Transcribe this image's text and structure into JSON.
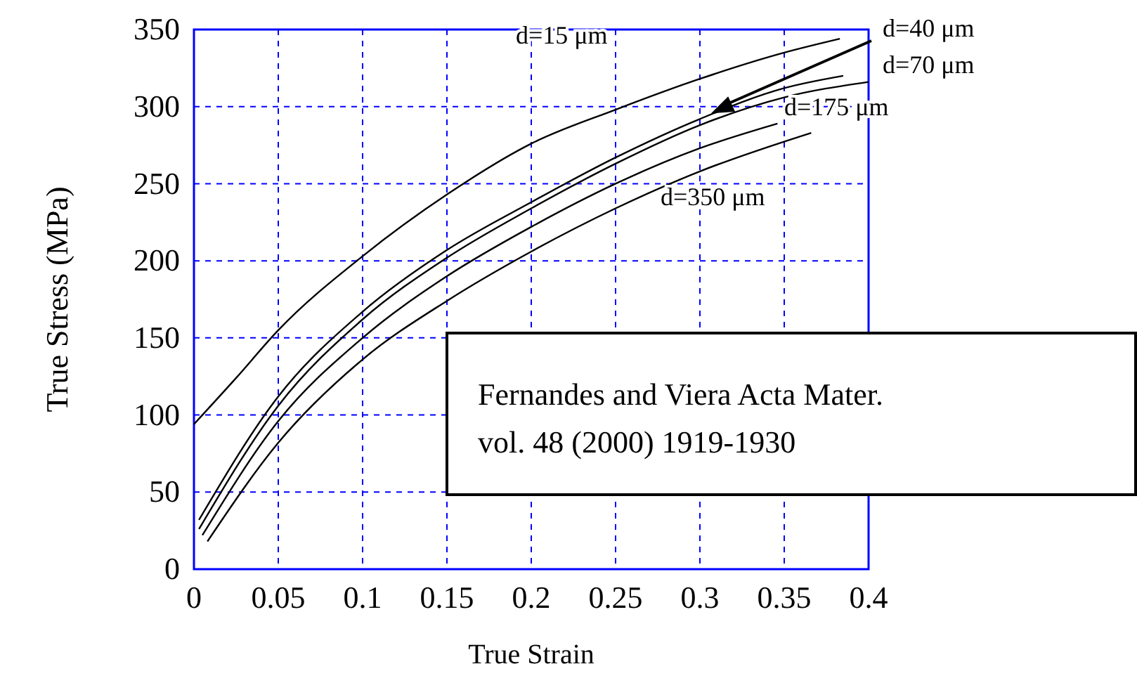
{
  "chart_data": {
    "type": "line",
    "xlabel": "True Strain",
    "ylabel": "True Stress (MPa)",
    "xlim": [
      0,
      0.4
    ],
    "ylim": [
      0,
      350
    ],
    "xticks": [
      0,
      0.05,
      0.1,
      0.15,
      0.2,
      0.25,
      0.3,
      0.35,
      0.4
    ],
    "yticks": [
      0,
      50,
      100,
      150,
      200,
      250,
      300,
      350
    ],
    "grid": true,
    "line_style": "solid",
    "marker": "none",
    "annotations": [
      "Fernandes and Viera Acta Mater.",
      "vol. 48 (2000) 1919-1930"
    ],
    "series": [
      {
        "name": "d=15 μm",
        "color": "#000000",
        "x": [
          0,
          0.025,
          0.05,
          0.1,
          0.15,
          0.2,
          0.25,
          0.3,
          0.35,
          0.383
        ],
        "values": [
          94,
          124,
          155,
          203,
          243,
          276,
          298,
          318,
          335,
          344
        ]
      },
      {
        "name": "d=40 μm",
        "color": "#000000",
        "x": [
          0.003,
          0.05,
          0.1,
          0.15,
          0.2,
          0.25,
          0.3,
          0.35,
          0.385
        ],
        "values": [
          32,
          112,
          167,
          207,
          238,
          267,
          292,
          312,
          320
        ]
      },
      {
        "name": "d=70 μm",
        "color": "#000000",
        "x": [
          0.003,
          0.05,
          0.1,
          0.15,
          0.2,
          0.25,
          0.3,
          0.35,
          0.4
        ],
        "values": [
          26,
          106,
          162,
          202,
          234,
          263,
          288,
          306,
          316
        ]
      },
      {
        "name": "d=175 μm",
        "color": "#000000",
        "x": [
          0.005,
          0.05,
          0.1,
          0.15,
          0.2,
          0.25,
          0.3,
          0.346
        ],
        "values": [
          22,
          96,
          150,
          190,
          222,
          250,
          273,
          289
        ]
      },
      {
        "name": "d=350 μm",
        "color": "#000000",
        "x": [
          0.008,
          0.05,
          0.1,
          0.15,
          0.2,
          0.25,
          0.3,
          0.366
        ],
        "values": [
          18,
          82,
          136,
          174,
          206,
          234,
          258,
          283
        ]
      }
    ]
  }
}
